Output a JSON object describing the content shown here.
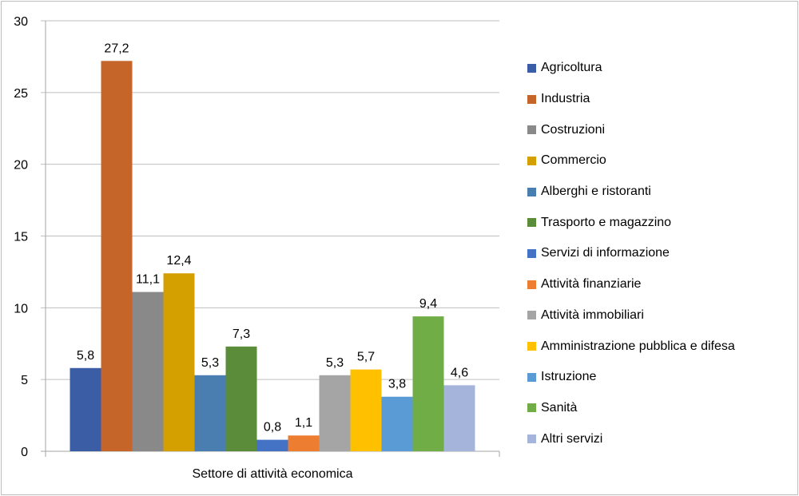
{
  "chart_data": {
    "type": "bar",
    "xlabel": "Settore di attività economica",
    "ylabel": "",
    "ylim": [
      0,
      30
    ],
    "yticks": [
      0,
      5,
      10,
      15,
      20,
      25,
      30
    ],
    "grid": true,
    "legend_position": "right",
    "series": [
      {
        "name": "Agricoltura",
        "value": 5.8,
        "label": "5,8",
        "color": "#3A5DA5"
      },
      {
        "name": "Industria",
        "value": 27.2,
        "label": "27,2",
        "color": "#C5652A"
      },
      {
        "name": "Costruzioni",
        "value": 11.1,
        "label": "11,1",
        "color": "#898989"
      },
      {
        "name": "Commercio",
        "value": 12.4,
        "label": "12,4",
        "color": "#D4A000"
      },
      {
        "name": "Alberghi e ristoranti",
        "value": 5.3,
        "label": "5,3",
        "color": "#4A7EB0"
      },
      {
        "name": "Trasporto e magazzino",
        "value": 7.3,
        "label": "7,3",
        "color": "#5A8C3A"
      },
      {
        "name": "Servizi di informazione",
        "value": 0.8,
        "label": "0,8",
        "color": "#4472C4"
      },
      {
        "name": "Attività finanziarie",
        "value": 1.1,
        "label": "1,1",
        "color": "#ED7D31"
      },
      {
        "name": "Attività immobiliari",
        "value": 5.3,
        "label": "5,3",
        "color": "#A5A5A5"
      },
      {
        "name": "Amministrazione pubblica e difesa",
        "value": 5.7,
        "label": "5,7",
        "color": "#FFC000"
      },
      {
        "name": "Istruzione",
        "value": 3.8,
        "label": "3,8",
        "color": "#5B9BD5"
      },
      {
        "name": "Sanità",
        "value": 9.4,
        "label": "9,4",
        "color": "#70AD47"
      },
      {
        "name": "Altri servizi",
        "value": 4.6,
        "label": "4,6",
        "color": "#A5B4DB"
      }
    ]
  }
}
